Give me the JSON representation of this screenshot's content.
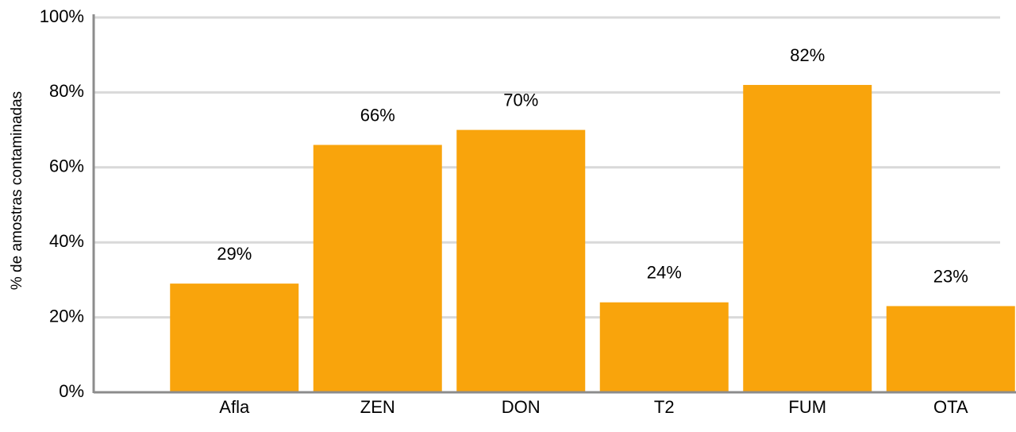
{
  "chart_data": {
    "type": "bar",
    "y_label": "% de amostras contaminadas",
    "categories": [
      "Afla",
      "ZEN",
      "DON",
      "T2",
      "FUM",
      "OTA"
    ],
    "values": [
      29,
      66,
      70,
      24,
      82,
      23
    ],
    "value_labels": [
      "29%",
      "66%",
      "70%",
      "24%",
      "82%",
      "23%"
    ],
    "color": "#f9a40c",
    "ylim": [
      0,
      100
    ],
    "yticks": [
      {
        "value": 0,
        "label": "0%"
      },
      {
        "value": 20,
        "label": "20%"
      },
      {
        "value": 40,
        "label": "40%"
      },
      {
        "value": 60,
        "label": "60%"
      },
      {
        "value": 80,
        "label": "80%"
      },
      {
        "value": 100,
        "label": "100%"
      }
    ],
    "grid": true
  }
}
